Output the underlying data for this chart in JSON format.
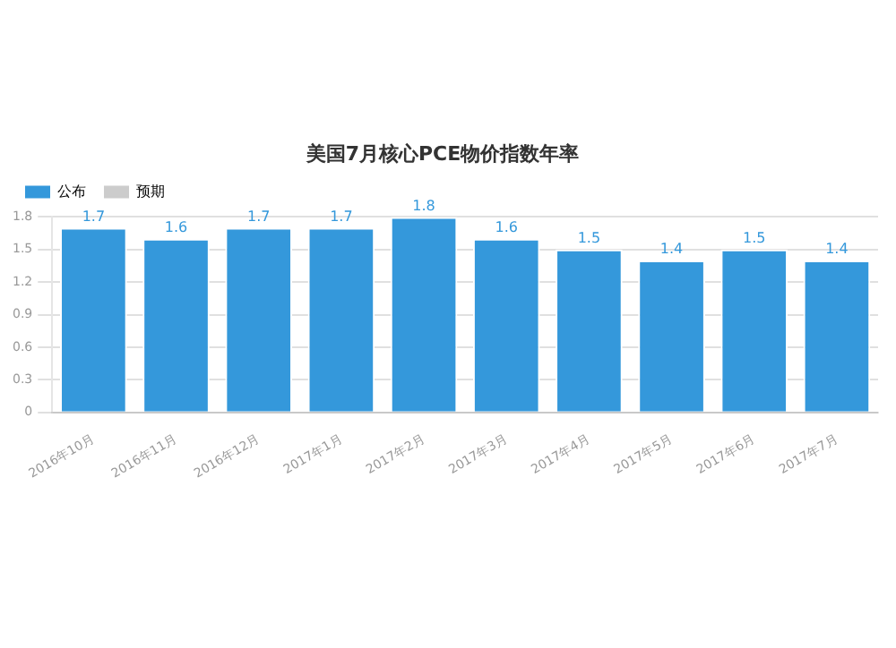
{
  "chart_data": {
    "type": "bar",
    "title": "美国7月核心PCE物价指数年率",
    "categories": [
      "2016年10月",
      "2016年11月",
      "2016年12月",
      "2017年1月",
      "2017年2月",
      "2017年3月",
      "2017年4月",
      "2017年5月",
      "2017年6月",
      "2017年7月"
    ],
    "series": [
      {
        "name": "公布",
        "color": "#3498db",
        "values": [
          1.7,
          1.6,
          1.7,
          1.7,
          1.8,
          1.6,
          1.5,
          1.4,
          1.5,
          1.4
        ]
      },
      {
        "name": "预期",
        "color": "#cccccc",
        "values": [
          null,
          null,
          null,
          null,
          null,
          null,
          null,
          null,
          null,
          null
        ]
      }
    ],
    "ylim": [
      0,
      1.8
    ],
    "yticks": [
      0,
      0.3,
      0.6,
      0.9,
      1.2,
      1.5,
      1.8
    ],
    "grid": "y",
    "legend": "top left",
    "data_labels": true
  }
}
